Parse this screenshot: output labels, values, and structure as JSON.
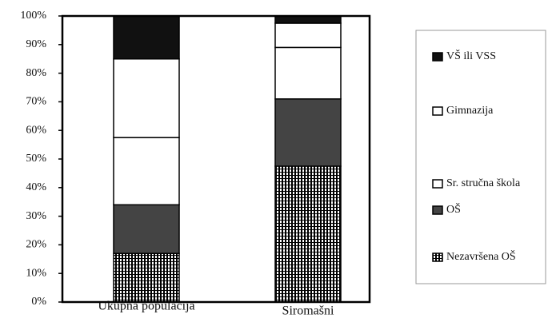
{
  "chart_data": {
    "type": "stacked_bar",
    "categories": [
      "Ukupna populacija",
      "Siromašni"
    ],
    "series": [
      {
        "name": "Nezavršena OŠ",
        "color": "#000000",
        "hatch": "vertical",
        "values": [
          17,
          47.5
        ]
      },
      {
        "name": "OŠ",
        "color": "#444444",
        "values": [
          17,
          23.5
        ]
      },
      {
        "name": "Sr. stručna škola",
        "color": "#ffffff",
        "values": [
          23.5,
          18
        ]
      },
      {
        "name": "Gimnazija",
        "color": "#ffffff",
        "values": [
          27.5,
          8.5
        ]
      },
      {
        "name": "VŠ ili VSS",
        "color": "#111111",
        "values": [
          15,
          2.5
        ]
      }
    ],
    "ylim": [
      0,
      100
    ],
    "yticks": [
      {
        "value": 0,
        "label": "0%"
      },
      {
        "value": 10,
        "label": "10%"
      },
      {
        "value": 20,
        "label": "20%"
      },
      {
        "value": 30,
        "label": "30%"
      },
      {
        "value": 40,
        "label": "40%"
      },
      {
        "value": 50,
        "label": "50%"
      },
      {
        "value": 60,
        "label": "60%"
      },
      {
        "value": 70,
        "label": "70%"
      },
      {
        "value": 80,
        "label": "80%"
      },
      {
        "value": 90,
        "label": "90%"
      },
      {
        "value": 100,
        "label": "100%"
      }
    ],
    "legend": "right"
  }
}
